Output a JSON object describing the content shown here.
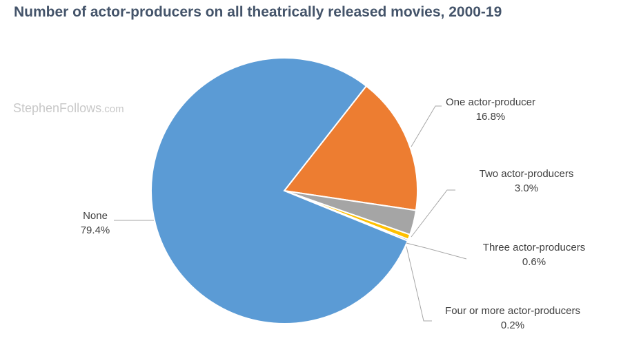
{
  "watermark": {
    "name": "StephenFollows",
    "domain": ".com"
  },
  "chart_data": {
    "type": "pie",
    "title": "Number of actor-producers on all theatrically released movies, 2000-19",
    "start_angle_deg": 52,
    "direction": "clockwise",
    "slices": [
      {
        "label": "One actor-producer",
        "value": 16.8,
        "value_label": "16.8%",
        "color": "#ed7d31"
      },
      {
        "label": "Two actor-producers",
        "value": 3.0,
        "value_label": "3.0%",
        "color": "#a5a5a5"
      },
      {
        "label": "Three actor-producers",
        "value": 0.6,
        "value_label": "0.6%",
        "color": "#ffc000"
      },
      {
        "label": "Four or more actor-producers",
        "value": 0.2,
        "value_label": "0.2%",
        "color": "#4472c4"
      },
      {
        "label": "None",
        "value": 79.4,
        "value_label": "79.4%",
        "color": "#5b9bd5"
      }
    ]
  }
}
